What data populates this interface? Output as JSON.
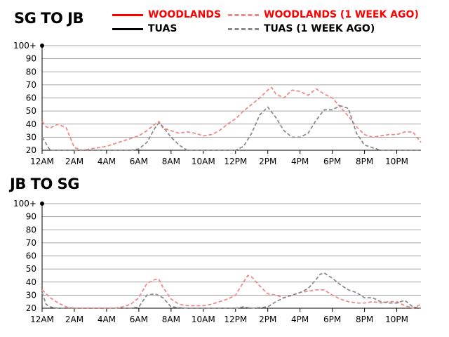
{
  "colors": {
    "woodlands": "#ff0000",
    "woodlands_week": "#f08a8a",
    "tuas": "#000000",
    "tuas_week": "#8c8c8c",
    "grid": "#888888"
  },
  "legend": {
    "woodlands": "WOODLANDS",
    "woodlands_week": "WOODLANDS (1 WEEK AGO)",
    "tuas": "TUAS",
    "tuas_week": "TUAS (1 WEEK AGO)"
  },
  "chart_data": [
    {
      "type": "line",
      "title": "SG TO JB",
      "ylim": [
        20,
        100
      ],
      "y_ticks": [
        "20",
        "30",
        "40",
        "50",
        "60",
        "70",
        "80",
        "90",
        "100+"
      ],
      "xlim": [
        0,
        23.5
      ],
      "x_ticks": [
        "12AM",
        "2AM",
        "4AM",
        "6AM",
        "8AM",
        "10AM",
        "12PM",
        "2PM",
        "4PM",
        "6PM",
        "8PM",
        "10PM"
      ],
      "grid": true,
      "series": [
        {
          "name": "WOODLANDS (1 WEEK AGO)",
          "x": [
            0,
            0.25,
            0.5,
            1,
            1.5,
            2,
            2.5,
            3,
            3.5,
            4,
            4.5,
            5,
            5.5,
            6,
            6.5,
            7,
            7.25,
            7.5,
            8,
            8.5,
            9,
            9.5,
            10,
            10.5,
            11,
            11.5,
            12,
            12.5,
            13,
            13.5,
            14,
            14.25,
            14.5,
            15,
            15.5,
            16,
            16.5,
            17,
            17.5,
            18,
            18.5,
            19,
            19.5,
            20,
            20.5,
            21,
            21.5,
            22,
            22.5,
            23,
            23.5
          ],
          "y": [
            42,
            38,
            37,
            40,
            37,
            22,
            20,
            21,
            22,
            23,
            25,
            27,
            29,
            31,
            35,
            40,
            42,
            37,
            35,
            33,
            34,
            33,
            31,
            32,
            35,
            40,
            44,
            50,
            55,
            60,
            66,
            68,
            63,
            60,
            66,
            65,
            62,
            67,
            63,
            60,
            53,
            46,
            38,
            32,
            30,
            31,
            32,
            32,
            34,
            34,
            26
          ]
        },
        {
          "name": "TUAS (1 WEEK AGO)",
          "x": [
            0,
            0.5,
            1,
            2,
            3,
            4,
            5,
            5.5,
            6,
            6.5,
            7,
            7.25,
            7.5,
            8,
            8.5,
            9,
            10,
            11,
            12,
            12.5,
            13,
            13.5,
            14,
            14.5,
            15,
            15.5,
            16,
            16.5,
            17,
            17.5,
            18,
            18.5,
            19,
            19.5,
            20,
            21,
            22,
            23,
            23.5
          ],
          "y": [
            30,
            20,
            20,
            20,
            20,
            20,
            20,
            20,
            21,
            26,
            37,
            41,
            38,
            30,
            24,
            20,
            20,
            20,
            20,
            23,
            33,
            47,
            53,
            45,
            35,
            30,
            30,
            33,
            43,
            51,
            51,
            54,
            52,
            33,
            24,
            20,
            20,
            20,
            20
          ]
        }
      ]
    },
    {
      "type": "line",
      "title": "JB TO SG",
      "ylim": [
        20,
        100
      ],
      "y_ticks": [
        "20",
        "30",
        "40",
        "50",
        "60",
        "70",
        "80",
        "90",
        "100+"
      ],
      "xlim": [
        0,
        23.5
      ],
      "x_ticks": [
        "12AM",
        "2AM",
        "4AM",
        "6AM",
        "8AM",
        "10AM",
        "12PM",
        "2PM",
        "4PM",
        "6PM",
        "8PM",
        "10PM"
      ],
      "grid": true,
      "series": [
        {
          "name": "WOODLANDS (1 WEEK AGO)",
          "x": [
            0,
            0.5,
            1,
            1.5,
            2,
            3,
            4,
            4.5,
            5,
            5.5,
            6,
            6.5,
            7,
            7.25,
            7.5,
            8,
            8.5,
            9,
            9.5,
            10,
            10.5,
            11,
            11.5,
            12,
            12.5,
            12.75,
            13,
            13.5,
            14,
            14.5,
            15,
            15.5,
            16,
            16.5,
            17,
            17.5,
            18,
            18.5,
            19,
            19.5,
            20,
            20.5,
            21,
            21.5,
            22,
            22.5,
            23,
            23.5
          ],
          "y": [
            34,
            28,
            24,
            21,
            20,
            20,
            20,
            20,
            21,
            23,
            28,
            39,
            42,
            42,
            36,
            27,
            23,
            22,
            22,
            22,
            23,
            25,
            27,
            30,
            40,
            45,
            44,
            37,
            31,
            30,
            28,
            30,
            32,
            33,
            34,
            34,
            30,
            27,
            25,
            24,
            24,
            25,
            24,
            25,
            25,
            22,
            20,
            23
          ]
        },
        {
          "name": "TUAS (1 WEEK AGO)",
          "x": [
            0,
            0.25,
            0.5,
            1,
            2,
            3,
            4,
            5,
            5.5,
            6,
            6.5,
            7,
            7.5,
            8,
            9,
            10,
            11,
            11.5,
            12,
            12.5,
            13,
            14,
            14.5,
            15,
            15.5,
            16,
            16.5,
            17,
            17.25,
            17.5,
            18,
            18.5,
            19,
            19.5,
            20,
            20.5,
            21,
            21.5,
            22,
            22.5,
            23,
            23.5
          ],
          "y": [
            32,
            23,
            21,
            20,
            20,
            20,
            20,
            20,
            20,
            21,
            30,
            31,
            28,
            21,
            20,
            20,
            20,
            20,
            20,
            21,
            20,
            21,
            25,
            28,
            30,
            32,
            35,
            42,
            46,
            47,
            43,
            38,
            34,
            32,
            28,
            28,
            25,
            24,
            24,
            26,
            21,
            20
          ]
        }
      ]
    }
  ]
}
